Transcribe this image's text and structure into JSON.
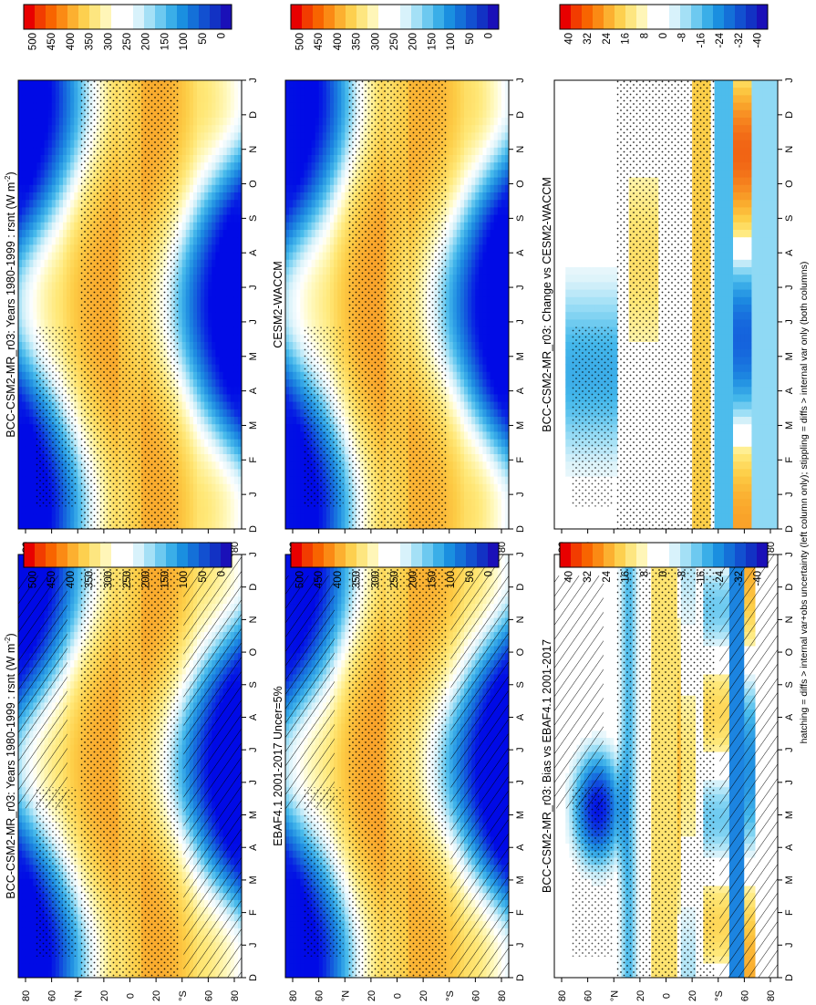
{
  "figure": {
    "footnote": "hatching = diffs > internal var+obs uncertainty (left column only); stippling = diffs > internal var only (both columns)"
  },
  "colorbars": {
    "absolute": {
      "labels": [
        "500",
        "450",
        "400",
        "350",
        "300",
        "250",
        "200",
        "150",
        "100",
        "50",
        "0"
      ],
      "colors": [
        "#e80000",
        "#f23c00",
        "#f86400",
        "#fb8a14",
        "#fcb030",
        "#fdd04f",
        "#fde680",
        "#fff6b8",
        "#ffffff",
        "#ffffff",
        "#d8f2fb",
        "#a4e0f6",
        "#6dc9f0",
        "#3aaee8",
        "#1a8fe0",
        "#1470d8",
        "#1250d0",
        "#1232c4",
        "#1a10b8"
      ]
    },
    "difference": {
      "labels": [
        "40",
        "32",
        "24",
        "16",
        "8",
        "0",
        "-8",
        "-16",
        "-24",
        "-32",
        "-40"
      ],
      "colors": [
        "#e80000",
        "#f23c00",
        "#f86400",
        "#fb8a14",
        "#fcb030",
        "#fdd04f",
        "#fde680",
        "#fff6b8",
        "#ffffff",
        "#ffffff",
        "#d8f2fb",
        "#a4e0f6",
        "#6dc9f0",
        "#3aaee8",
        "#1a8fe0",
        "#1470d8",
        "#1250d0",
        "#1232c4",
        "#1a10b8"
      ]
    }
  },
  "chart_data": [
    {
      "type": "heatmap",
      "panel": "top-left",
      "title": "BCC-CSM2-MR_r03: Years 1980-1999 : rsnt (W m",
      "title_sup": "-2",
      "title_tail": ")",
      "x_ticks": [
        "D",
        "J",
        "F",
        "M",
        "A",
        "M",
        "J",
        "J",
        "A",
        "S",
        "O",
        "N",
        "D",
        "J"
      ],
      "y_ticks": [
        "80",
        "60",
        "°N",
        "20",
        "0",
        "20",
        "°S",
        "60",
        "80"
      ],
      "colorbar": "absolute",
      "hatching": true,
      "stippling": true
    },
    {
      "type": "heatmap",
      "panel": "middle-left",
      "title": "EBAF4.1 2001-2017 Uncer=5%",
      "x_ticks": [
        "D",
        "J",
        "F",
        "M",
        "A",
        "M",
        "J",
        "J",
        "A",
        "S",
        "O",
        "N",
        "D",
        "J"
      ],
      "y_ticks": [
        "80",
        "60",
        "°N",
        "20",
        "0",
        "20",
        "°S",
        "60",
        "80"
      ],
      "colorbar": "absolute",
      "hatching": true,
      "stippling": true
    },
    {
      "type": "heatmap",
      "panel": "bottom-left",
      "title": "BCC-CSM2-MR_r03: Bias vs EBAF4.1 2001-2017",
      "x_ticks": [
        "D",
        "J",
        "F",
        "M",
        "A",
        "M",
        "J",
        "J",
        "A",
        "S",
        "O",
        "N",
        "D",
        "J"
      ],
      "y_ticks": [
        "80",
        "60",
        "°N",
        "20",
        "0",
        "20",
        "°S",
        "60",
        "80"
      ],
      "colorbar": "difference",
      "hatching": true,
      "stippling": true
    },
    {
      "type": "heatmap",
      "panel": "top-right",
      "title": "BCC-CSM2-MR_r03: Years 1980-1999 : rsnt (W m",
      "title_sup": "-2",
      "title_tail": ")",
      "x_ticks": [
        "D",
        "J",
        "F",
        "M",
        "A",
        "M",
        "J",
        "J",
        "A",
        "S",
        "O",
        "N",
        "D",
        "J"
      ],
      "y_ticks": [
        "80",
        "60",
        "°N",
        "20",
        "0",
        "20",
        "°S",
        "60",
        "80"
      ],
      "colorbar": "absolute",
      "hatching": false,
      "stippling": true
    },
    {
      "type": "heatmap",
      "panel": "middle-right",
      "title": "CESM2-WACCM",
      "x_ticks": [
        "D",
        "J",
        "F",
        "M",
        "A",
        "M",
        "J",
        "J",
        "A",
        "S",
        "O",
        "N",
        "D",
        "J"
      ],
      "y_ticks": [
        "80",
        "60",
        "°N",
        "20",
        "0",
        "20",
        "°S",
        "60",
        "80"
      ],
      "colorbar": "absolute",
      "hatching": false,
      "stippling": true
    },
    {
      "type": "heatmap",
      "panel": "bottom-right",
      "title": "BCC-CSM2-MR_r03: Change vs CESM2-WACCM",
      "x_ticks": [
        "D",
        "J",
        "F",
        "M",
        "A",
        "M",
        "J",
        "J",
        "A",
        "S",
        "O",
        "N",
        "D",
        "J"
      ],
      "y_ticks": [
        "80",
        "60",
        "°N",
        "20",
        "0",
        "20",
        "°S",
        "60",
        "80"
      ],
      "colorbar": "difference",
      "hatching": false,
      "stippling": true
    }
  ]
}
